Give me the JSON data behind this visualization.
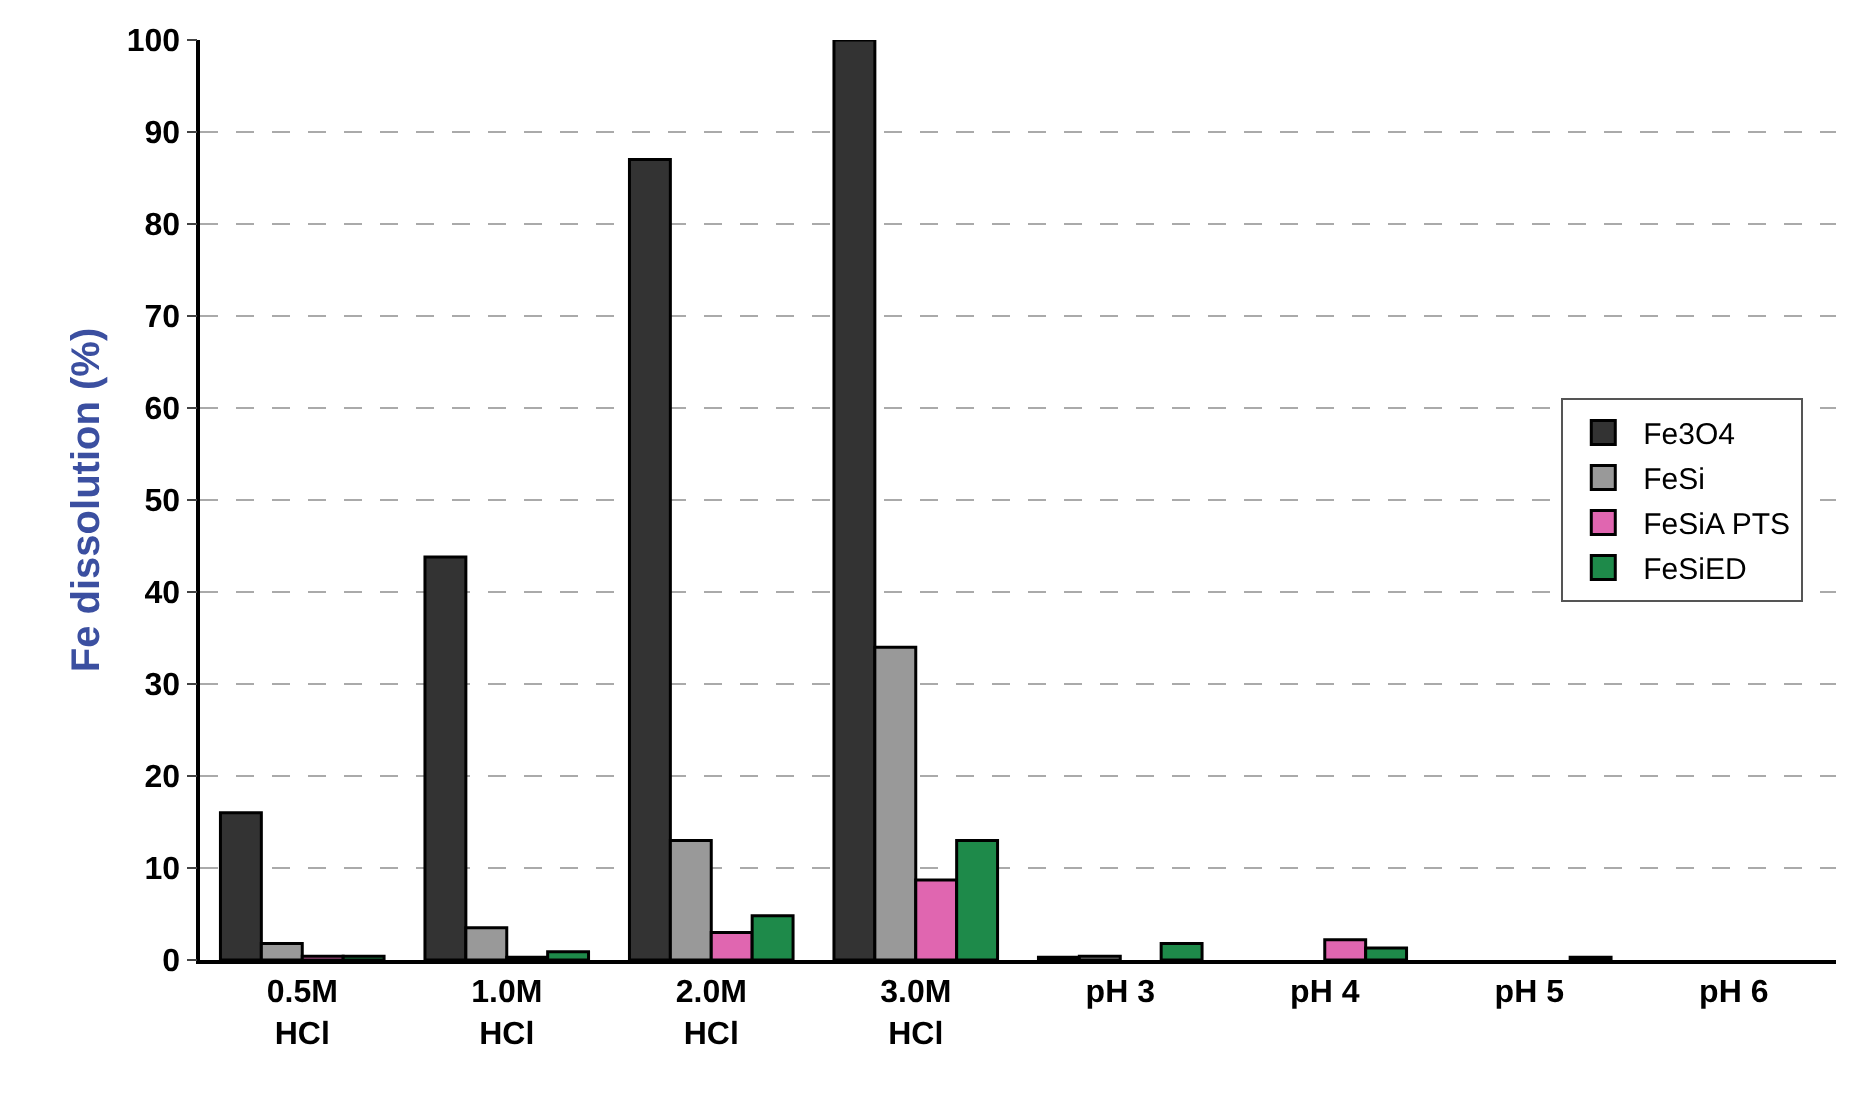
{
  "chart_data": {
    "type": "bar",
    "ylabel": "Fe dissolution (%)",
    "categories": [
      "0.5M\nHCl",
      "1.0M\nHCl",
      "2.0M\nHCl",
      "3.0M\nHCl",
      "pH 3",
      "pH 4",
      "pH 5",
      "pH 6"
    ],
    "series": [
      {
        "name": "Fe3O4",
        "color": "#333333",
        "values": [
          16,
          43.8,
          87,
          100,
          0.3,
          0,
          0,
          0
        ]
      },
      {
        "name": "FeSi",
        "color": "#999999",
        "values": [
          1.8,
          3.5,
          13,
          34,
          0.4,
          0,
          0,
          0
        ]
      },
      {
        "name": "FeSiA PTS",
        "color": "#e066b0",
        "values": [
          0.4,
          0.3,
          3,
          8.7,
          0,
          2.2,
          0,
          0
        ]
      },
      {
        "name": "FeSiED",
        "color": "#1e8a4a",
        "values": [
          0.4,
          0.9,
          4.8,
          13,
          1.8,
          1.3,
          0.3,
          0
        ]
      }
    ],
    "ylim": [
      0,
      100
    ],
    "yticks": [
      0,
      10,
      20,
      30,
      40,
      50,
      60,
      70,
      80,
      90,
      100
    ],
    "grid": "y",
    "legend": "right"
  }
}
